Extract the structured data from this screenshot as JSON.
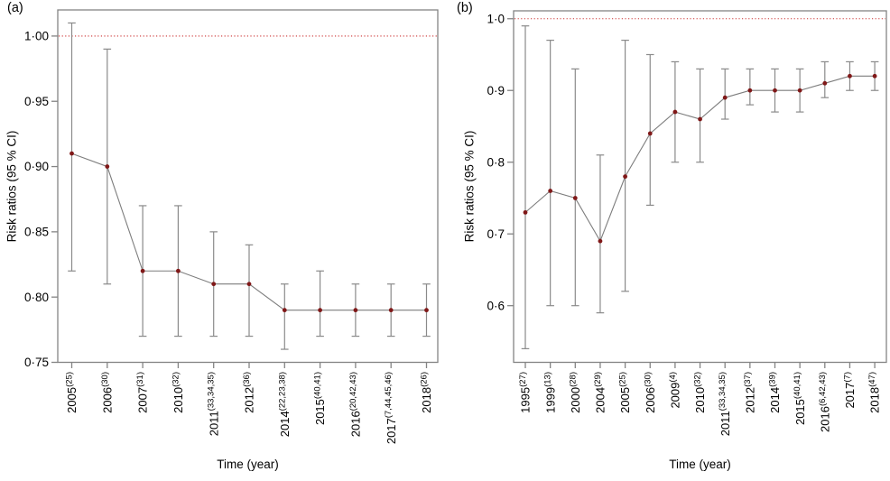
{
  "figure": {
    "panels": [
      {
        "label": "(a)",
        "xlabel": "Time (year)",
        "ylabel": "Risk ratios (95 % CI)"
      },
      {
        "label": "(b)",
        "xlabel": "Time (year)",
        "ylabel": "Risk ratios (95 % CI)"
      }
    ]
  },
  "colors": {
    "point": "#801818",
    "series_line": "#7d7d7d",
    "error_bar": "#8a8a8a",
    "frame": "#848484",
    "reference_line": "#cc3333",
    "text": "#000000"
  },
  "chart_data": [
    {
      "type": "line",
      "panel_label": "(a)",
      "title": "",
      "xlabel": "Time (year)",
      "ylabel": "Risk ratios (95 % CI)",
      "legend": "none",
      "grid": "off",
      "reference_line": 1.0,
      "ylim": [
        0.75,
        1.02
      ],
      "ytick_values": [
        1.0,
        0.95,
        0.9,
        0.85,
        0.8,
        0.75
      ],
      "ytick_labels": [
        "1·00",
        "0·95",
        "0·90",
        "0·85",
        "0·80",
        "0·75"
      ],
      "categories": [
        "2005",
        "2006",
        "2007",
        "2010",
        "2011",
        "2012",
        "2014",
        "2015",
        "2016",
        "2017",
        "2018"
      ],
      "references": [
        "(25)",
        "(30)",
        "(31)",
        "(32)",
        "(33,34,35)",
        "(36)",
        "(22,23,38)",
        "(40,41)",
        "(20,42,43)",
        "(7,44,45,46)",
        "(26)"
      ],
      "values": [
        0.91,
        0.9,
        0.82,
        0.82,
        0.81,
        0.81,
        0.79,
        0.79,
        0.79,
        0.79,
        0.79
      ],
      "ci_lower": [
        0.82,
        0.81,
        0.77,
        0.77,
        0.77,
        0.77,
        0.76,
        0.77,
        0.77,
        0.77,
        0.77
      ],
      "ci_upper": [
        1.01,
        0.99,
        0.87,
        0.87,
        0.85,
        0.84,
        0.81,
        0.82,
        0.81,
        0.81,
        0.81
      ]
    },
    {
      "type": "line",
      "panel_label": "(b)",
      "title": "",
      "xlabel": "Time (year)",
      "ylabel": "Risk ratios (95 % CI)",
      "legend": "none",
      "grid": "off",
      "reference_line": 1.0,
      "ylim": [
        0.521,
        1.011
      ],
      "ytick_values": [
        1.0,
        0.9,
        0.8,
        0.7,
        0.6
      ],
      "ytick_labels": [
        "1·0",
        "0·9",
        "0·8",
        "0·7",
        "0·6"
      ],
      "categories": [
        "1995",
        "1999",
        "2000",
        "2004",
        "2005",
        "2006",
        "2009",
        "2010",
        "2011",
        "2012",
        "2014",
        "2015",
        "2016",
        "2017",
        "2018"
      ],
      "references": [
        "(27)",
        "(13)",
        "(28)",
        "(29)",
        "(25)",
        "(30)",
        "(4)",
        "(32)",
        "(33,34,35)",
        "(37)",
        "(39)",
        "(40,41)",
        "(6,42,43)",
        "(7)",
        "(47)"
      ],
      "values": [
        0.73,
        0.76,
        0.75,
        0.69,
        0.78,
        0.84,
        0.87,
        0.86,
        0.89,
        0.9,
        0.9,
        0.9,
        0.91,
        0.92,
        0.92
      ],
      "ci_lower": [
        0.54,
        0.6,
        0.6,
        0.59,
        0.62,
        0.74,
        0.8,
        0.8,
        0.86,
        0.88,
        0.87,
        0.87,
        0.89,
        0.9,
        0.9
      ],
      "ci_upper": [
        0.99,
        0.97,
        0.93,
        0.81,
        0.97,
        0.95,
        0.94,
        0.93,
        0.93,
        0.93,
        0.93,
        0.93,
        0.94,
        0.94,
        0.94
      ]
    }
  ]
}
